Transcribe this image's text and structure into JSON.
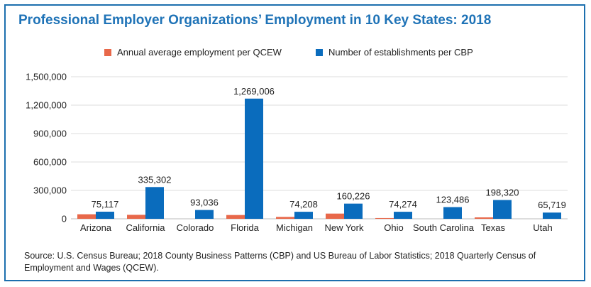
{
  "title": "Professional Employer Organizations’ Employment in 10 Key States: 2018",
  "source": "Source: U.S. Census Bureau; 2018 County Business Patterns (CBP) and US Bureau of Labor Statistics; 2018 Quarterly Census of Employment and Wages (QCEW).",
  "colors": {
    "border": "#1c6fae",
    "title": "#1f73b7"
  },
  "chart_data": {
    "type": "bar",
    "categories": [
      "Arizona",
      "California",
      "Colorado",
      "Florida",
      "Michigan",
      "New York",
      "Ohio",
      "South Carolina",
      "Texas",
      "Utah"
    ],
    "series": [
      {
        "name": "Annual average employment per QCEW",
        "color": "#e8684a",
        "values": [
          48000,
          42000,
          0,
          40000,
          20000,
          55000,
          8000,
          0,
          15000,
          0
        ],
        "labels": [
          "",
          "",
          "",
          "",
          "",
          "",
          "",
          "",
          "",
          ""
        ]
      },
      {
        "name": "Number of establishments per CBP",
        "color": "#0a6cbd",
        "values": [
          75117,
          335302,
          93036,
          1269006,
          74208,
          160226,
          74274,
          123486,
          198320,
          65719
        ],
        "labels": [
          "75,117",
          "335,302",
          "93,036",
          "1,269,006",
          "74,208",
          "160,226",
          "74,274",
          "123,486",
          "198,320",
          "65,719"
        ]
      }
    ],
    "yticks": [
      "0",
      "300,000",
      "600,000",
      "900,000",
      "1,200,000",
      "1,500,000"
    ],
    "ylim": [
      0,
      1500000
    ],
    "legend_position": "top",
    "grid": true
  }
}
